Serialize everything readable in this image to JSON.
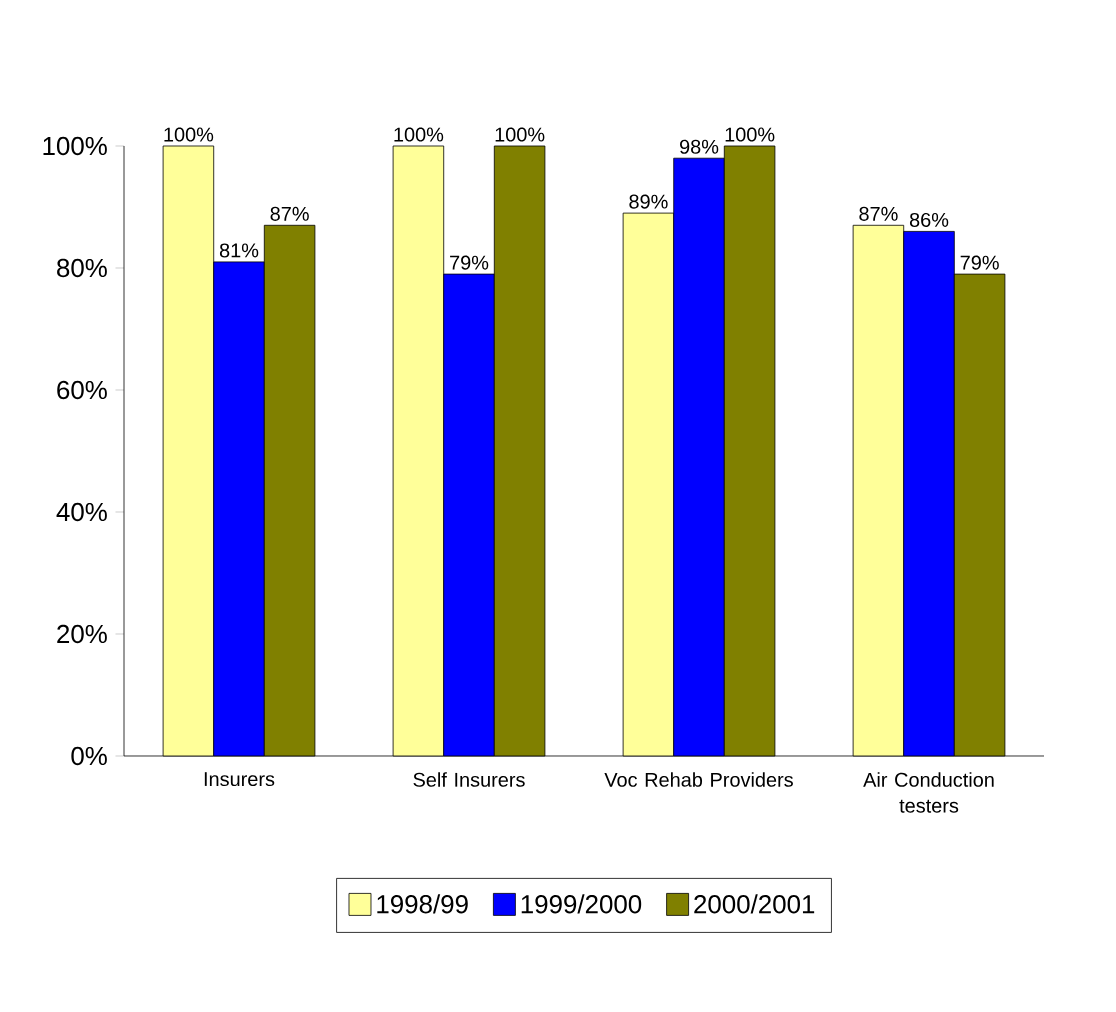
{
  "chart_data": {
    "type": "bar",
    "categories": [
      "Insurers",
      "Self Insurers",
      "Voc Rehab Providers",
      "Air Conduction testers"
    ],
    "series": [
      {
        "name": "1998/99",
        "color": "#ffff99",
        "values": [
          100,
          100,
          89,
          87
        ],
        "value_labels": [
          "100%",
          "100%",
          "89%",
          "87%"
        ]
      },
      {
        "name": "1999/2000",
        "color": "#0000ff",
        "values": [
          81,
          79,
          98,
          86
        ],
        "value_labels": [
          "81%",
          "79%",
          "98%",
          "86%"
        ]
      },
      {
        "name": "2000/2001",
        "color": "#808000",
        "values": [
          87,
          100,
          100,
          79
        ],
        "value_labels": [
          "87%",
          "100%",
          "100%",
          "79%"
        ]
      }
    ],
    "ylim": [
      0,
      100
    ],
    "yticks": [
      {
        "value": 0,
        "label": "0%"
      },
      {
        "value": 20,
        "label": "20%"
      },
      {
        "value": 40,
        "label": "40%"
      },
      {
        "value": 60,
        "label": "60%"
      },
      {
        "value": 80,
        "label": "80%"
      },
      {
        "value": 100,
        "label": "100%"
      }
    ],
    "grid": false,
    "legend": "bottom"
  }
}
